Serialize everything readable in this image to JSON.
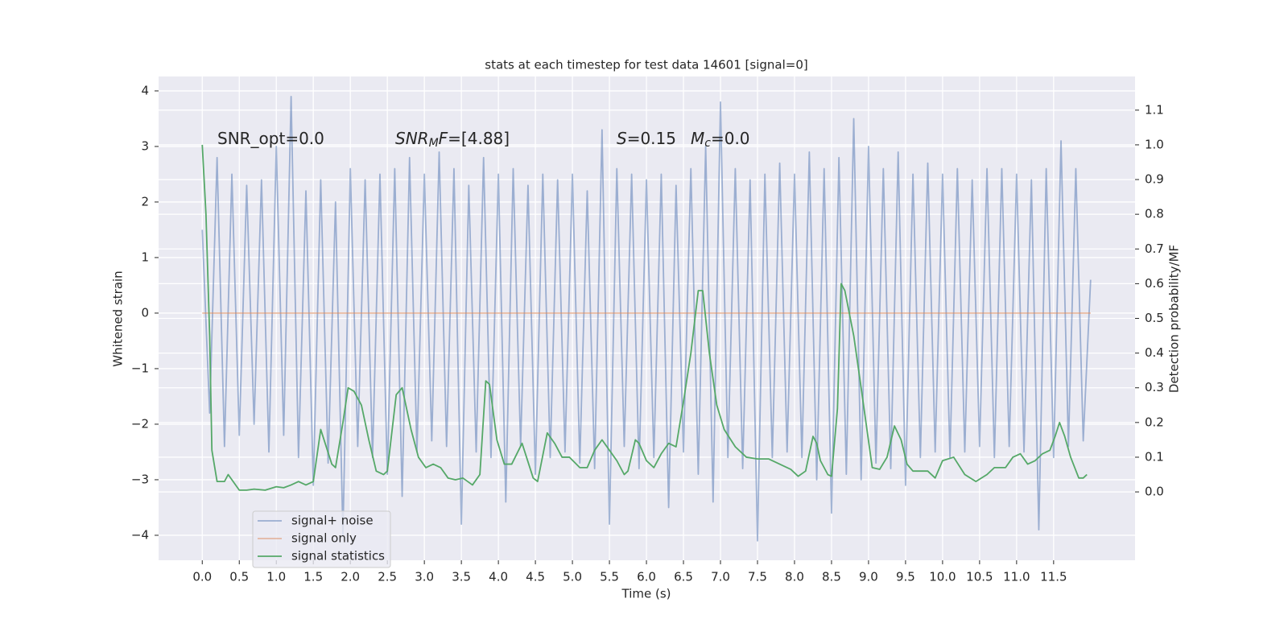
{
  "chart_data": {
    "type": "line",
    "title": "stats at each timestep for test data 14601 [signal=0]",
    "xlabel": "Time (s)",
    "ylabel": "Whitened strain",
    "y2label": "Detection probability/MF",
    "xlim": [
      -0.59,
      12.6
    ],
    "ylim": [
      -4.45,
      4.26
    ],
    "y2lim": [
      -0.197,
      1.197
    ],
    "xticks": [
      {
        "value": 0,
        "label": "0.0"
      },
      0.5,
      {
        "value": 1,
        "label": "1.0"
      },
      1.5,
      {
        "value": 2,
        "label": "2.0"
      },
      2.5,
      {
        "value": 3,
        "label": "3.0"
      },
      3.5,
      {
        "value": 4,
        "label": "4.0"
      },
      4.5,
      {
        "value": 5,
        "label": "5.0"
      },
      5.5,
      {
        "value": 6,
        "label": "6.0"
      },
      6.5,
      {
        "value": 7,
        "label": "7.0"
      },
      7.5,
      {
        "value": 8,
        "label": "8.0"
      },
      8.5,
      {
        "value": 9,
        "label": "9.0"
      },
      9.5,
      {
        "value": 10,
        "label": "10.0"
      },
      10.5,
      {
        "value": 11,
        "label": "11.0"
      },
      11.5
    ],
    "yticks": [
      {
        "value": -4,
        "label": "−4"
      },
      {
        "value": -3,
        "label": "−3"
      },
      {
        "value": -2,
        "label": "−2"
      },
      {
        "value": -1,
        "label": "−1"
      },
      0,
      1,
      2,
      3,
      4
    ],
    "y2ticks": [
      {
        "value": 0,
        "label": "0.0"
      },
      0.1,
      0.2,
      0.3,
      0.4,
      0.5,
      0.6,
      0.7,
      0.8,
      0.9,
      {
        "value": 1,
        "label": "1.0"
      },
      1.1
    ],
    "grid": true,
    "legend": "lower left",
    "series": [
      {
        "name": "signal+ noise",
        "color": "#4c72b0",
        "alpha": 0.5,
        "x": [
          0,
          0.1,
          0.2,
          0.3,
          0.4,
          0.5,
          0.6,
          0.7,
          0.8,
          0.9,
          1,
          1.1,
          1.2,
          1.3,
          1.4,
          1.5,
          1.6,
          1.7,
          1.8,
          1.9,
          2,
          2.1,
          2.2,
          2.3,
          2.4,
          2.5,
          2.6,
          2.7,
          2.8,
          2.9,
          3,
          3.1,
          3.2,
          3.3,
          3.4,
          3.5,
          3.6,
          3.7,
          3.8,
          3.9,
          4,
          4.1,
          4.2,
          4.3,
          4.4,
          4.5,
          4.6,
          4.7,
          4.8,
          4.9,
          5,
          5.1,
          5.2,
          5.3,
          5.4,
          5.5,
          5.6,
          5.7,
          5.8,
          5.9,
          6,
          6.1,
          6.2,
          6.3,
          6.4,
          6.5,
          6.6,
          6.7,
          6.8,
          6.9,
          7,
          7.1,
          7.2,
          7.3,
          7.4,
          7.5,
          7.6,
          7.7,
          7.8,
          7.9,
          8,
          8.1,
          8.2,
          8.3,
          8.4,
          8.5,
          8.6,
          8.7,
          8.8,
          8.9,
          9,
          9.1,
          9.2,
          9.3,
          9.4,
          9.5,
          9.6,
          9.7,
          9.8,
          9.9,
          10,
          10.1,
          10.2,
          10.3,
          10.4,
          10.5,
          10.6,
          10.7,
          10.8,
          10.9,
          11,
          11.1,
          11.2,
          11.3,
          11.4,
          11.5,
          11.6,
          11.7,
          11.8,
          11.9,
          12
        ],
        "values": [
          1.5,
          -1.8,
          2.8,
          -2.4,
          2.5,
          -2.2,
          2.3,
          -2.0,
          2.4,
          -2.5,
          3.0,
          -2.2,
          3.9,
          -2.6,
          2.2,
          -3.1,
          2.4,
          -2.7,
          2.0,
          -4.0,
          2.6,
          -2.4,
          2.4,
          -2.6,
          2.5,
          -2.9,
          2.6,
          -3.3,
          2.8,
          -2.5,
          2.5,
          -2.3,
          2.9,
          -2.4,
          2.6,
          -3.8,
          2.3,
          -2.5,
          2.8,
          -2.6,
          2.5,
          -3.4,
          2.6,
          -2.4,
          2.3,
          -2.9,
          2.5,
          -2.6,
          2.4,
          -2.5,
          2.5,
          -2.7,
          2.2,
          -2.8,
          3.3,
          -3.8,
          2.6,
          -2.4,
          2.5,
          -2.8,
          2.4,
          -2.6,
          2.5,
          -3.5,
          2.3,
          -2.5,
          2.6,
          -2.9,
          3.0,
          -3.4,
          3.8,
          -2.6,
          2.6,
          -2.8,
          2.4,
          -4.1,
          2.5,
          -2.6,
          2.7,
          -2.5,
          2.5,
          -2.6,
          2.9,
          -3.0,
          2.6,
          -3.6,
          2.8,
          -2.9,
          3.5,
          -3.0,
          3.0,
          -2.7,
          2.6,
          -2.8,
          2.9,
          -3.1,
          2.5,
          -2.6,
          2.7,
          -2.5,
          2.5,
          -2.6,
          2.6,
          -2.5,
          2.4,
          -2.4,
          2.6,
          -2.6,
          2.6,
          -2.4,
          2.5,
          -2.5,
          2.4,
          -3.9,
          2.6,
          -2.6,
          3.1,
          -2.4,
          2.6,
          -2.3,
          0.6
        ]
      },
      {
        "name": "signal only",
        "color": "#dd8452",
        "alpha": 0.5,
        "x": [
          0,
          12
        ],
        "values": [
          0,
          0
        ]
      },
      {
        "name": "signal statistics",
        "color": "#55a868",
        "axis": "y2",
        "x": [
          0,
          0.05,
          0.1,
          0.13,
          0.2,
          0.3,
          0.35,
          0.5,
          0.6,
          0.7,
          0.85,
          1,
          1.1,
          1.2,
          1.3,
          1.4,
          1.5,
          1.6,
          1.75,
          1.8,
          1.9,
          1.97,
          2.05,
          2.15,
          2.25,
          2.35,
          2.45,
          2.5,
          2.62,
          2.7,
          2.82,
          2.92,
          3.02,
          3.12,
          3.22,
          3.32,
          3.42,
          3.52,
          3.65,
          3.75,
          3.83,
          3.88,
          3.98,
          4.08,
          4.18,
          4.32,
          4.47,
          4.53,
          4.66,
          4.76,
          4.86,
          4.96,
          5.1,
          5.2,
          5.3,
          5.4,
          5.5,
          5.6,
          5.7,
          5.75,
          5.85,
          5.9,
          6.0,
          6.1,
          6.2,
          6.3,
          6.4,
          6.5,
          6.6,
          6.7,
          6.76,
          6.85,
          6.95,
          7.05,
          7.2,
          7.35,
          7.5,
          7.65,
          7.8,
          7.95,
          8.05,
          8.15,
          8.25,
          8.3,
          8.35,
          8.45,
          8.5,
          8.58,
          8.63,
          8.68,
          8.8,
          8.9,
          9.05,
          9.15,
          9.25,
          9.35,
          9.44,
          9.52,
          9.6,
          9.7,
          9.8,
          9.9,
          10,
          10.15,
          10.3,
          10.45,
          10.6,
          10.7,
          10.85,
          10.95,
          11.05,
          11.15,
          11.25,
          11.35,
          11.45,
          11.52,
          11.58,
          11.65,
          11.73,
          11.84,
          11.9,
          11.95
        ],
        "values": [
          1.0,
          0.8,
          0.45,
          0.12,
          0.03,
          0.03,
          0.05,
          0.005,
          0.005,
          0.008,
          0.005,
          0.015,
          0.012,
          0.02,
          0.03,
          0.02,
          0.03,
          0.18,
          0.08,
          0.07,
          0.2,
          0.3,
          0.29,
          0.25,
          0.15,
          0.06,
          0.05,
          0.06,
          0.28,
          0.3,
          0.18,
          0.1,
          0.07,
          0.08,
          0.07,
          0.04,
          0.035,
          0.04,
          0.02,
          0.05,
          0.32,
          0.31,
          0.15,
          0.08,
          0.08,
          0.14,
          0.04,
          0.03,
          0.17,
          0.14,
          0.1,
          0.1,
          0.07,
          0.07,
          0.12,
          0.15,
          0.12,
          0.09,
          0.05,
          0.06,
          0.15,
          0.14,
          0.09,
          0.07,
          0.11,
          0.14,
          0.13,
          0.26,
          0.4,
          0.58,
          0.58,
          0.4,
          0.25,
          0.18,
          0.13,
          0.1,
          0.095,
          0.095,
          0.08,
          0.065,
          0.045,
          0.06,
          0.16,
          0.14,
          0.09,
          0.05,
          0.045,
          0.24,
          0.6,
          0.58,
          0.45,
          0.3,
          0.07,
          0.065,
          0.1,
          0.19,
          0.15,
          0.08,
          0.06,
          0.06,
          0.06,
          0.04,
          0.09,
          0.1,
          0.05,
          0.03,
          0.05,
          0.07,
          0.07,
          0.1,
          0.11,
          0.08,
          0.09,
          0.11,
          0.12,
          0.16,
          0.2,
          0.16,
          0.1,
          0.04,
          0.04,
          0.05
        ]
      }
    ],
    "annotations": [
      {
        "parts": [
          {
            "text": "SNR_opt=0.0"
          }
        ]
      },
      {
        "parts": [
          {
            "text": "SNR",
            "style": "italic"
          },
          {
            "text": "M",
            "style": "italic-sub"
          },
          {
            "text": "F",
            "style": "italic"
          },
          {
            "text": "=[4.88]"
          }
        ]
      },
      {
        "parts": [
          {
            "text": "S",
            "style": "italic"
          },
          {
            "text": "=0.15"
          }
        ]
      },
      {
        "parts": [
          {
            "text": "M",
            "style": "italic"
          },
          {
            "text": "c",
            "style": "italic-sub"
          },
          {
            "text": "=0.0"
          }
        ]
      }
    ]
  }
}
